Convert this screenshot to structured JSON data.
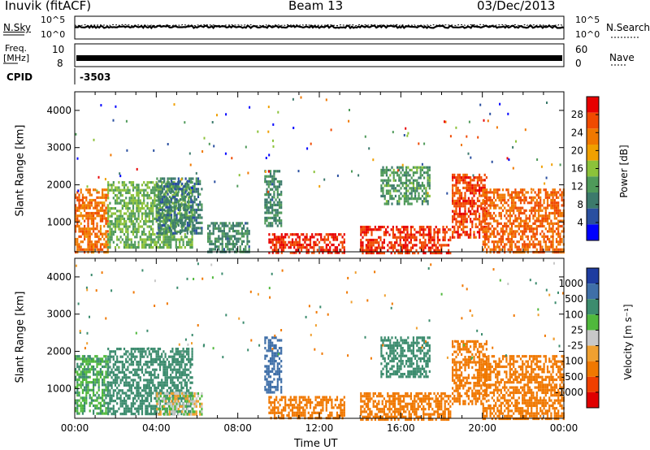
{
  "header": {
    "station": "Inuvik (fitACF)",
    "beam": "Beam 13",
    "date": "03/Dec/2013"
  },
  "noise_panel": {
    "left_label": "N.Sky",
    "right_label": "N.Search",
    "left_ticks": [
      "10^5",
      "10^0"
    ],
    "right_ticks": [
      "10^5",
      "10^0"
    ]
  },
  "freq_panel": {
    "left_label_1": "Freq.",
    "left_label_2": "[MHz]",
    "left_ticks": [
      "10",
      "8"
    ],
    "right_label": "Nave",
    "right_ticks": [
      "60",
      "0"
    ]
  },
  "cpid": {
    "label": "CPID",
    "value": "-3503"
  },
  "colors": {
    "power_scale": [
      "#0000ff",
      "#2a4fa0",
      "#3c7a6c",
      "#4f9a5a",
      "#8cc23a",
      "#f0a000",
      "#f07800",
      "#f04a00",
      "#e80000"
    ],
    "velocity_scale": [
      "#1e3ca0",
      "#3f6fa8",
      "#3c8c6e",
      "#50b83c",
      "#c8c8c8",
      "#f0a030",
      "#f07800",
      "#f04000",
      "#e00000"
    ]
  },
  "chart_data": [
    {
      "type": "heatmap",
      "panel": "power",
      "ylabel": "Slant Range [km]",
      "yticks": [
        "1000",
        "2000",
        "3000",
        "4000"
      ],
      "ylim": [
        200,
        4500
      ],
      "xlim": [
        0,
        24
      ],
      "colorbar_label": "Power [dB]",
      "colorbar_ticks": [
        "4",
        "8",
        "12",
        "16",
        "20",
        "24",
        "28"
      ],
      "colorbar_range": [
        0,
        32
      ],
      "echo_regions": [
        {
          "t0": 0.0,
          "t1": 1.6,
          "r0": 200,
          "r1": 1900,
          "level": 24
        },
        {
          "t0": 1.6,
          "t1": 5.8,
          "r0": 300,
          "r1": 2100,
          "level": 14
        },
        {
          "t0": 4.0,
          "t1": 6.2,
          "r0": 700,
          "r1": 2200,
          "level": 9
        },
        {
          "t0": 6.5,
          "t1": 8.6,
          "r0": 200,
          "r1": 1000,
          "level": 10
        },
        {
          "t0": 9.3,
          "t1": 10.1,
          "r0": 900,
          "r1": 2400,
          "level": 10
        },
        {
          "t0": 9.5,
          "t1": 13.2,
          "r0": 200,
          "r1": 700,
          "level": 29
        },
        {
          "t0": 14.0,
          "t1": 18.4,
          "r0": 200,
          "r1": 900,
          "level": 28
        },
        {
          "t0": 15.0,
          "t1": 17.4,
          "r0": 1500,
          "r1": 2500,
          "level": 12
        },
        {
          "t0": 18.5,
          "t1": 20.2,
          "r0": 600,
          "r1": 2300,
          "level": 27
        },
        {
          "t0": 20.0,
          "t1": 24.0,
          "r0": 200,
          "r1": 1900,
          "level": 25
        }
      ]
    },
    {
      "type": "heatmap",
      "panel": "velocity",
      "ylabel": "Slant Range [km]",
      "yticks": [
        "1000",
        "2000",
        "3000",
        "4000"
      ],
      "ylim": [
        200,
        4500
      ],
      "xlim": [
        0,
        24
      ],
      "xlabel": "Time UT",
      "xticks": [
        "00:00",
        "04:00",
        "08:00",
        "12:00",
        "16:00",
        "20:00",
        "00:00"
      ],
      "colorbar_label": "Velocity [m s⁻¹]",
      "colorbar_ticks": [
        "1000",
        "500",
        "100",
        "25",
        "-25",
        "-100",
        "-500",
        "-1000"
      ],
      "echo_regions": [
        {
          "t0": 0.0,
          "t1": 1.6,
          "r0": 300,
          "r1": 1900,
          "level": 100
        },
        {
          "t0": 1.6,
          "t1": 5.8,
          "r0": 300,
          "r1": 2100,
          "level": 300
        },
        {
          "t0": 4.0,
          "t1": 6.2,
          "r0": 300,
          "r1": 900,
          "level": 0
        },
        {
          "t0": 9.3,
          "t1": 10.1,
          "r0": 900,
          "r1": 2400,
          "level": 800
        },
        {
          "t0": 9.5,
          "t1": 13.2,
          "r0": 200,
          "r1": 800,
          "level": -200
        },
        {
          "t0": 14.0,
          "t1": 18.4,
          "r0": 200,
          "r1": 900,
          "level": -200
        },
        {
          "t0": 15.0,
          "t1": 17.4,
          "r0": 1300,
          "r1": 2400,
          "level": 300
        },
        {
          "t0": 18.5,
          "t1": 20.2,
          "r0": 600,
          "r1": 2300,
          "level": -300
        },
        {
          "t0": 20.0,
          "t1": 24.0,
          "r0": 200,
          "r1": 1900,
          "level": -400
        }
      ]
    }
  ]
}
